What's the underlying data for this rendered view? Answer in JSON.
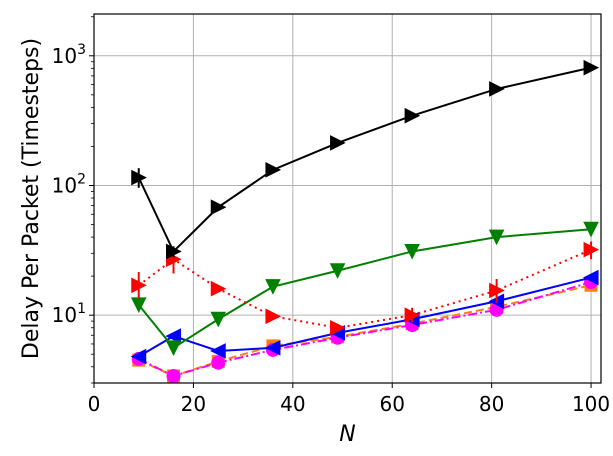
{
  "chart_data": {
    "type": "line",
    "title": "",
    "xlabel": "N",
    "ylabel": "Delay Per Packet (Timesteps)",
    "xlim": [
      0,
      102
    ],
    "ylim": [
      3.0,
      2100
    ],
    "yscale": "log",
    "grid": true,
    "x_ticks": [
      0,
      20,
      40,
      60,
      80,
      100
    ],
    "x_tick_labels": [
      "0",
      "20",
      "40",
      "60",
      "80",
      "100"
    ],
    "y_ticks": [
      10,
      100,
      1000
    ],
    "y_tick_labels": [
      {
        "base": "10",
        "exp": "1"
      },
      {
        "base": "10",
        "exp": "2"
      },
      {
        "base": "10",
        "exp": "3"
      }
    ],
    "x": [
      9,
      16,
      25,
      36,
      49,
      64,
      81,
      100
    ],
    "series": [
      {
        "values": [
          4.5,
          3.4,
          4.4,
          5.8,
          6.8,
          8.6,
          11.6,
          17.0
        ],
        "color": "#ff7f0e",
        "marker": "square",
        "linestyle": "dashed",
        "errors": []
      },
      {
        "values": [
          4.6,
          3.4,
          4.3,
          5.4,
          6.7,
          8.4,
          11.0,
          18.0
        ],
        "color": "#ff00ff",
        "marker": "circle",
        "linestyle": "dashdot",
        "errors": []
      },
      {
        "values": [
          4.8,
          6.9,
          5.3,
          5.6,
          7.3,
          9.3,
          12.8,
          19.5
        ],
        "color": "#0000ff",
        "marker": "triangle-left",
        "linestyle": "solid",
        "errors": []
      },
      {
        "values": [
          12.0,
          5.6,
          9.3,
          16.6,
          22.0,
          31.0,
          40.0,
          46.0
        ],
        "color": "#008000",
        "marker": "triangle-down",
        "linestyle": "solid",
        "errors": []
      },
      {
        "values": [
          17.0,
          27.0,
          16.0,
          9.8,
          8.0,
          10.0,
          15.5,
          32.0
        ],
        "color": "#ff0000",
        "marker": "triangle-right",
        "linestyle": "dotted",
        "errors": [
          [
            13.5,
            21.5
          ],
          [
            21.0,
            33.0
          ],
          [
            15.0,
            17.0
          ],
          [
            9.4,
            10.2
          ],
          [
            7.7,
            8.3
          ],
          [
            8.8,
            11.4
          ],
          [
            12.5,
            19.0
          ],
          [
            27.0,
            37.0
          ]
        ]
      },
      {
        "values": [
          115,
          31,
          68,
          132,
          213,
          345,
          555,
          810
        ],
        "color": "#000000",
        "marker": "triangle-right",
        "linestyle": "solid",
        "errors": [
          [
            96,
            136
          ],
          [
            28,
            34
          ]
        ]
      }
    ]
  }
}
